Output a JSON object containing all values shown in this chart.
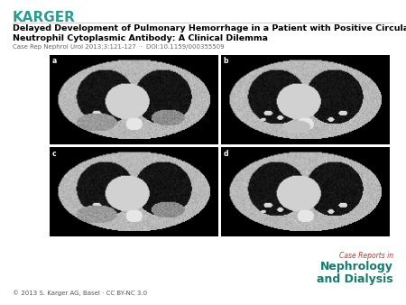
{
  "karger_text": "KARGER",
  "karger_color": "#2a9d8f",
  "title_line1": "Delayed Development of Pulmonary Hemorrhage in a Patient with Positive Circulating Anti-",
  "title_line2": "Neutrophil Cytoplasmic Antibody: A Clinical Dilemma",
  "subtitle": "Case Rep Nephrol Urol 2013;3:121-127  ·  DOI:10.1159/000355509",
  "image_labels": [
    "a",
    "b",
    "c",
    "d"
  ],
  "copyright": "© 2013 S. Karger AG, Basel · CC BY-NC 3.0",
  "journal_line1": "Case Reports in",
  "journal_line2": "Nephrology",
  "journal_line3": "and Dialysis",
  "journal_color1": "#c0392b",
  "journal_color2": "#1a7a6e",
  "bg_color": "#ffffff",
  "title_fontsize": 6.8,
  "subtitle_fontsize": 5.0,
  "copyright_fontsize": 5.0,
  "karger_fontsize": 11,
  "label_fontsize": 5.5
}
